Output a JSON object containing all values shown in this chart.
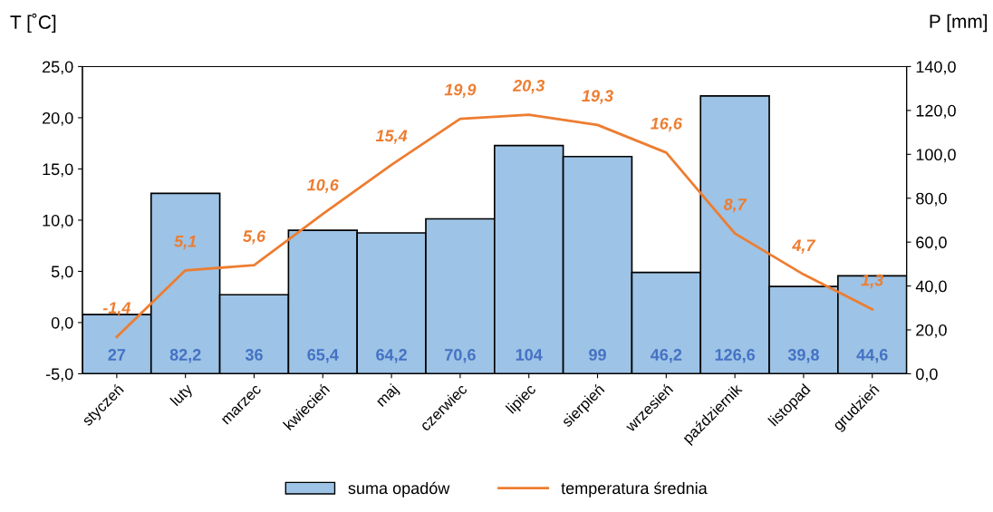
{
  "chart_data": {
    "type": "bar",
    "ylabel": "T [˚C]",
    "y2label": "P [mm]",
    "categories": [
      "styczeń",
      "luty",
      "marzec",
      "kwiecień",
      "maj",
      "czerwiec",
      "lipiec",
      "sierpień",
      "wrzesień",
      "październik",
      "listopad",
      "grudzień"
    ],
    "series": [
      {
        "name": "suma opadów",
        "axis": "y2",
        "color": "#9dc3e6",
        "values": [
          27,
          82.2,
          36,
          65.4,
          64.2,
          70.6,
          104,
          99,
          46.2,
          126.6,
          39.8,
          44.6
        ],
        "value_labels": [
          "27",
          "82,2",
          "36",
          "65,4",
          "64,2",
          "70,6",
          "104",
          "99",
          "46,2",
          "126,6",
          "39,8",
          "44,6"
        ]
      },
      {
        "name": "temperatura średnia",
        "type": "line",
        "axis": "y",
        "color": "#ed7d31",
        "values": [
          -1.4,
          5.1,
          5.6,
          10.6,
          15.4,
          19.9,
          20.3,
          19.3,
          16.6,
          8.7,
          4.7,
          1.3
        ],
        "value_labels": [
          "-1,4",
          "5,1",
          "5,6",
          "10,6",
          "15,4",
          "19,9",
          "20,3",
          "19,3",
          "16,6",
          "8,7",
          "4,7",
          "1,3"
        ]
      }
    ],
    "ylim": [
      -5,
      25
    ],
    "yticks": [
      {
        "value": -5,
        "label": "-5,0"
      },
      {
        "value": 0,
        "label": "0,0"
      },
      {
        "value": 5,
        "label": "5,0"
      },
      {
        "value": 10,
        "label": "10,0"
      },
      {
        "value": 15,
        "label": "15,0"
      },
      {
        "value": 20,
        "label": "20,0"
      },
      {
        "value": 25,
        "label": "25,0"
      }
    ],
    "y2lim": [
      0,
      140
    ],
    "y2ticks": [
      {
        "value": 0,
        "label": "0,0"
      },
      {
        "value": 20,
        "label": "20,0"
      },
      {
        "value": 40,
        "label": "40,0"
      },
      {
        "value": 60,
        "label": "60,0"
      },
      {
        "value": 80,
        "label": "80,0"
      },
      {
        "value": 100,
        "label": "100,0"
      },
      {
        "value": 120,
        "label": "120,0"
      },
      {
        "value": 140,
        "label": "140,0"
      }
    ],
    "legend": "bottom",
    "grid": false,
    "marker": "none",
    "line_style": "solid"
  }
}
